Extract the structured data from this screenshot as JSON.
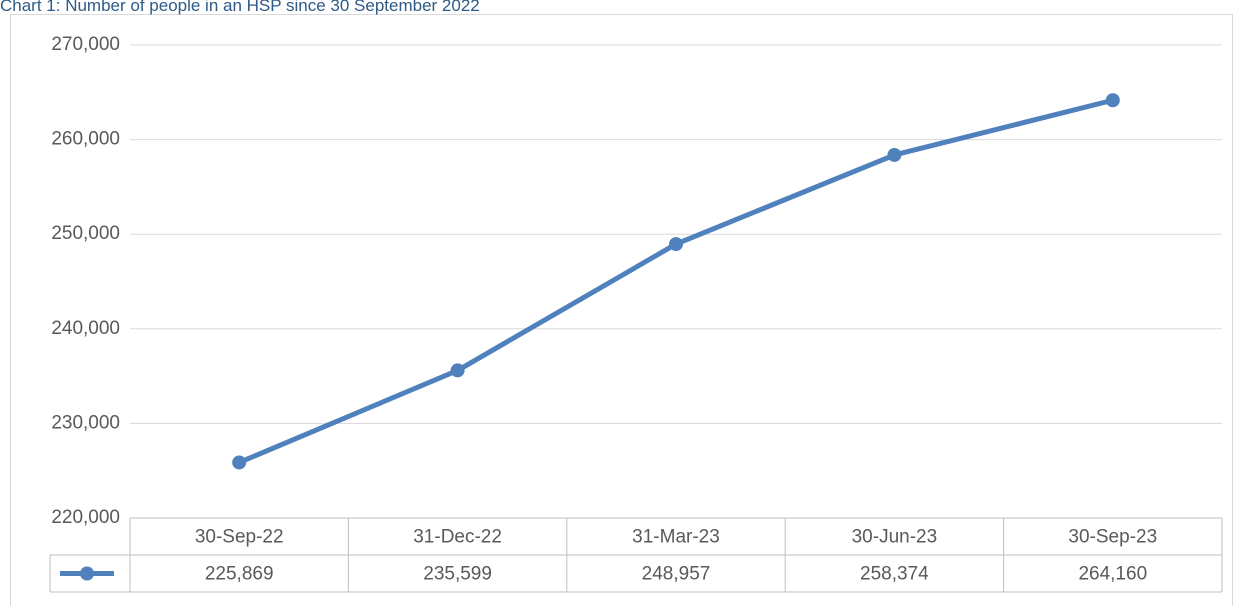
{
  "chart_data": {
    "type": "line",
    "title": "Chart 1: Number of people in an HSP since 30 September 2022",
    "categories": [
      "30-Sep-22",
      "31-Dec-22",
      "31-Mar-23",
      "30-Jun-23",
      "30-Sep-23"
    ],
    "series": [
      {
        "color": "#4f81bd",
        "values": [
          225869,
          235599,
          248957,
          258374,
          264160
        ],
        "value_labels": [
          "225,869",
          "235,599",
          "248,957",
          "258,374",
          "264,160"
        ]
      }
    ],
    "ylim": [
      220000,
      270000
    ],
    "yticks": [
      {
        "value": 220000,
        "label": "220,000"
      },
      {
        "value": 230000,
        "label": "230,000"
      },
      {
        "value": 240000,
        "label": "240,000"
      },
      {
        "value": 250000,
        "label": "250,000"
      },
      {
        "value": 260000,
        "label": "260,000"
      },
      {
        "value": 270000,
        "label": "270,000"
      }
    ],
    "grid": true,
    "data_table": true
  }
}
